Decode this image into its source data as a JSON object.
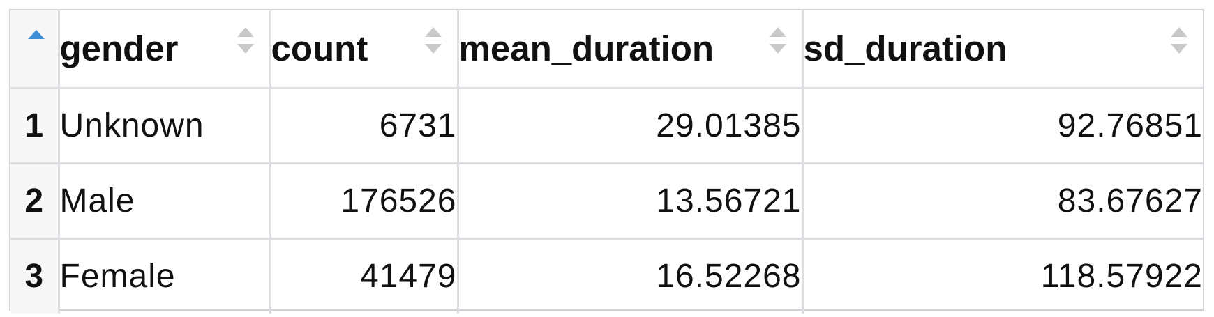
{
  "table": {
    "columns": [
      "gender",
      "count",
      "mean_duration",
      "sd_duration"
    ],
    "rows": [
      {
        "rownum": "1",
        "gender": "Unknown",
        "count": "6731",
        "mean_duration": "29.01385",
        "sd_duration": "92.76851"
      },
      {
        "rownum": "2",
        "gender": "Male",
        "count": "176526",
        "mean_duration": "13.56721",
        "sd_duration": "83.67627"
      },
      {
        "rownum": "3",
        "gender": "Female",
        "count": "41479",
        "mean_duration": "16.52268",
        "sd_duration": "118.57922"
      }
    ],
    "sort_icon_names": {
      "active": "sort-ascending-icon",
      "inactive": "sort-both-icon"
    },
    "colors": {
      "sort_active": "#3f8fd6",
      "sort_inactive": "#c9c9c9",
      "grid_border": "#dcdee1",
      "rownum_bg": "#f7f7f8"
    }
  }
}
